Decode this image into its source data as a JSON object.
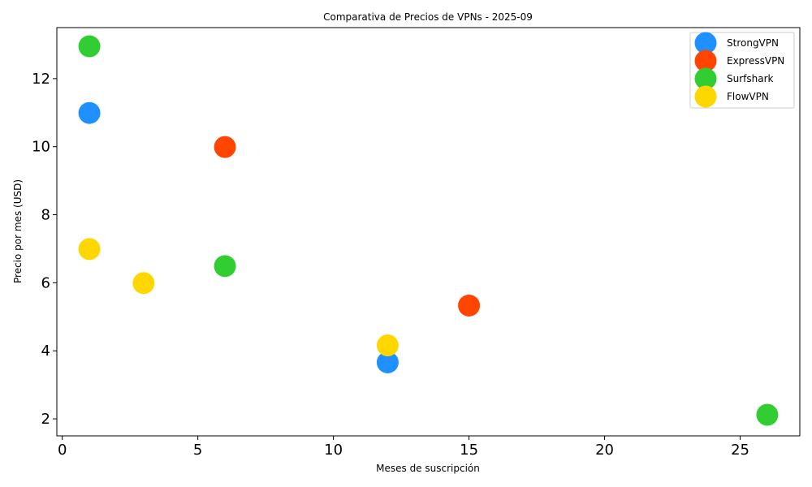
{
  "chart_data": {
    "type": "scatter",
    "title": "Comparativa de Precios de VPNs - 2025-09",
    "xlabel": "Meses de suscripción",
    "ylabel": "Precio por mes (USD)",
    "xlim": [
      -0.2,
      27.2
    ],
    "ylim": [
      1.5,
      13.5
    ],
    "xticks": [
      0,
      5,
      10,
      15,
      20,
      25
    ],
    "yticks": [
      2,
      4,
      6,
      8,
      10,
      12
    ],
    "grid": false,
    "legend_position": "top-right",
    "series": [
      {
        "name": "StrongVPN",
        "color": "#1E90FF",
        "points": [
          {
            "x": 1,
            "y": 10.99
          },
          {
            "x": 12,
            "y": 3.66
          }
        ]
      },
      {
        "name": "ExpressVPN",
        "color": "#FF4500",
        "points": [
          {
            "x": 6,
            "y": 9.99
          },
          {
            "x": 15,
            "y": 5.33
          }
        ]
      },
      {
        "name": "Surfshark",
        "color": "#32CD32",
        "points": [
          {
            "x": 1,
            "y": 12.95
          },
          {
            "x": 6,
            "y": 6.49
          },
          {
            "x": 26,
            "y": 2.12
          }
        ]
      },
      {
        "name": "FlowVPN",
        "color": "#FFD700",
        "points": [
          {
            "x": 1,
            "y": 6.99
          },
          {
            "x": 3,
            "y": 5.99
          },
          {
            "x": 12,
            "y": 4.16
          }
        ]
      }
    ]
  }
}
